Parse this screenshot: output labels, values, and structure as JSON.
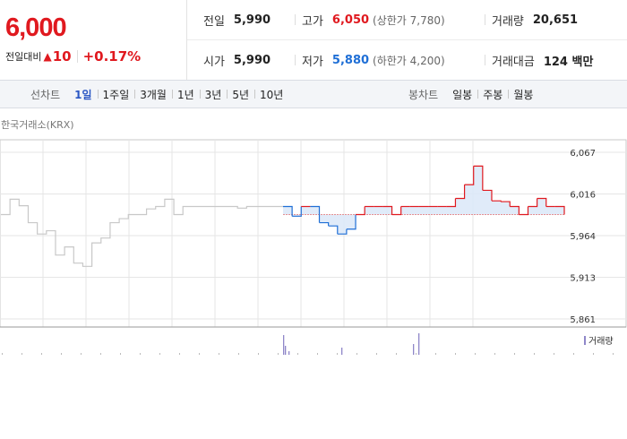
{
  "quote": {
    "price": "6,000",
    "change_label": "전일대비",
    "change_arrow": "▲",
    "change_value": "10",
    "change_pct": "+0.17%"
  },
  "stats": {
    "prev_label": "전일",
    "prev_value": "5,990",
    "open_label": "시가",
    "open_value": "5,990",
    "high_label": "고가",
    "high_value": "6,050",
    "upper_limit": "(상한가 7,780)",
    "low_label": "저가",
    "low_value": "5,880",
    "lower_limit": "(하한가 4,200)",
    "volume_label": "거래량",
    "volume_value": "20,651",
    "amount_label": "거래대금",
    "amount_value": "124 백만"
  },
  "toolbar": {
    "line_title": "선차트",
    "line_options": [
      "1일",
      "1주일",
      "3개월",
      "1년",
      "3년",
      "5년",
      "10년"
    ],
    "candle_title": "봉차트",
    "candle_options": [
      "일봉",
      "주봉",
      "월봉"
    ]
  },
  "chart": {
    "exchange": "한국거래소(KRX)",
    "yticks": [
      "6,067",
      "6,016",
      "5,964",
      "5,913",
      "5,861"
    ],
    "volume_legend": "거래량",
    "colors": {
      "up": "#e0191f",
      "down": "#1f6fd6",
      "prev": "#c8c8c8",
      "volume": "#8f87c9"
    }
  },
  "chart_data": {
    "type": "line",
    "series": [
      {
        "values": [
          5990,
          6009,
          6001,
          5980,
          5966,
          5970,
          5940,
          5950,
          5930,
          5926,
          5955,
          5961,
          5980,
          5985,
          5990,
          5990,
          5997,
          6000,
          6009,
          5990,
          6000,
          6000,
          6000,
          6000,
          6000,
          6000,
          5998,
          6000,
          6000,
          6000,
          6000,
          6000
        ]
      },
      {
        "values": [
          6000,
          5988,
          6000,
          6000,
          5980,
          5976,
          5966,
          5972,
          5990,
          6000,
          6000,
          6000,
          5990,
          6000,
          6000,
          6000,
          6000,
          6000,
          6000,
          6010,
          6027,
          6050,
          6020,
          6007,
          6006,
          6000,
          5990,
          6000,
          6010,
          6000,
          6000,
          5990
        ]
      }
    ],
    "ylim": [
      5861,
      6067
    ]
  }
}
